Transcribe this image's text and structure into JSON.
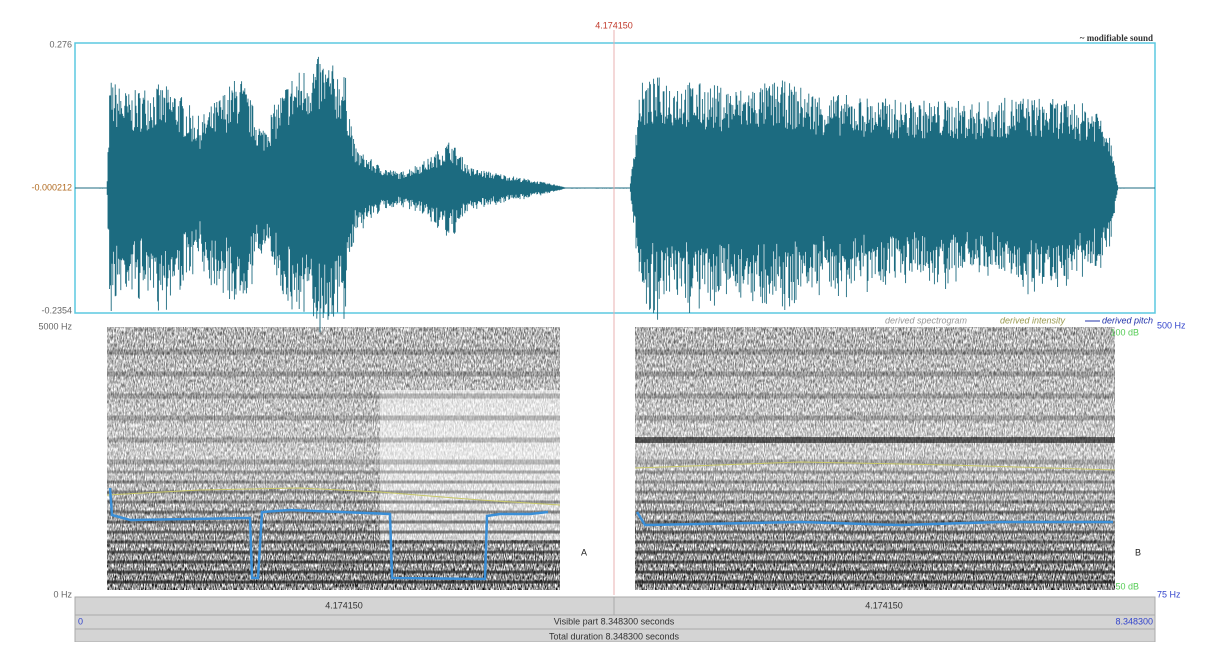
{
  "cursor_time": "4.174150",
  "modifiable_sound": "~ modifiable sound",
  "waveform": {
    "top": "0.276",
    "middle": "-0.000212",
    "bottom": "-0.2354"
  },
  "spectrogram": {
    "top": "5000 Hz",
    "bottom": "0 Hz",
    "legend": [
      "derived spectrogram",
      "derived intensity",
      "derived pitch"
    ],
    "pitch_top": "500 Hz",
    "pitch_bottom": "75 Hz",
    "intensity_top": "100 dB",
    "intensity_bottom": "50 dB"
  },
  "annotations": [
    "A",
    "B"
  ],
  "time_bar": {
    "left_segment": "4.174150",
    "right_segment": "4.174150",
    "visible_start": "0",
    "visible_part": "Visible part 8.348300 seconds",
    "visible_end": "8.348300",
    "total_duration": "Total duration 8.348300 seconds"
  }
}
